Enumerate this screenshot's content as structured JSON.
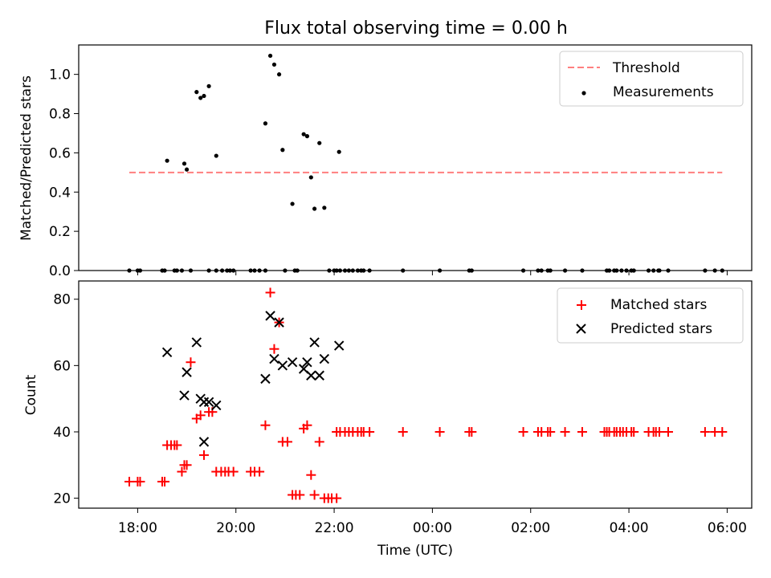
{
  "figure": {
    "title": "Flux total observing time = 0.00 h",
    "xlabel": "Time (UTC)",
    "xtick_labels": [
      "18:00",
      "20:00",
      "22:00",
      "00:00",
      "02:00",
      "04:00",
      "06:00"
    ]
  },
  "chart_data": [
    {
      "type": "scatter",
      "panel": "top",
      "ylabel": "Matched/Predicted stars",
      "xlabel": "Time (UTC)",
      "x_unit": "hours since 00:00 UTC (values after midnight continue past 24)",
      "xlim": [
        16.8,
        30.5
      ],
      "ylim": [
        0,
        1.15
      ],
      "yticks": [
        0.0,
        0.2,
        0.4,
        0.6,
        0.8,
        1.0
      ],
      "ytick_labels": [
        "0.0",
        "0.2",
        "0.4",
        "0.6",
        "0.8",
        "1.0"
      ],
      "legend_position": "top-right",
      "series": [
        {
          "name": "Threshold",
          "style": "dashed-line",
          "color": "#ff7f7f",
          "x": [
            17.83,
            29.9
          ],
          "y": [
            0.5,
            0.5
          ]
        },
        {
          "name": "Measurements",
          "style": "dot",
          "color": "#000000",
          "x": [
            18.6,
            18.95,
            19.0,
            19.2,
            19.28,
            19.35,
            19.45,
            19.6,
            20.6,
            20.7,
            20.78,
            20.88,
            20.95,
            21.15,
            21.38,
            21.45,
            21.53,
            21.6,
            21.7,
            21.8,
            22.1,
            17.83,
            18.0,
            18.05,
            18.5,
            18.55,
            18.75,
            18.8,
            18.9,
            19.08,
            19.45,
            19.6,
            19.72,
            19.82,
            19.88,
            19.95,
            20.3,
            20.38,
            20.48,
            20.6,
            21.0,
            21.2,
            21.25,
            21.9,
            22.0,
            22.05,
            22.12,
            22.22,
            22.3,
            22.38,
            22.48,
            22.55,
            22.6,
            22.72,
            23.4,
            24.15,
            24.75,
            24.8,
            25.85,
            26.15,
            26.22,
            26.35,
            26.4,
            26.7,
            27.05,
            27.55,
            27.6,
            27.7,
            27.75,
            27.85,
            27.95,
            28.05,
            28.1,
            28.4,
            28.5,
            28.6,
            28.62,
            28.8,
            29.55,
            29.75,
            29.9
          ],
          "y": [
            0.56,
            0.545,
            0.515,
            0.91,
            0.88,
            0.89,
            0.94,
            0.585,
            0.75,
            1.095,
            1.05,
            1.0,
            0.615,
            0.34,
            0.695,
            0.685,
            0.475,
            0.315,
            0.65,
            0.32,
            0.605,
            0.0,
            0.0,
            0.0,
            0.0,
            0.0,
            0.0,
            0.0,
            0.0,
            0.0,
            0.0,
            0.0,
            0.0,
            0.0,
            0.0,
            0.0,
            0.0,
            0.0,
            0.0,
            0.0,
            0.0,
            0.0,
            0.0,
            0.0,
            0.0,
            0.0,
            0.0,
            0.0,
            0.0,
            0.0,
            0.0,
            0.0,
            0.0,
            0.0,
            0.0,
            0.0,
            0.0,
            0.0,
            0.0,
            0.0,
            0.0,
            0.0,
            0.0,
            0.0,
            0.0,
            0.0,
            0.0,
            0.0,
            0.0,
            0.0,
            0.0,
            0.0,
            0.0,
            0.0,
            0.0,
            0.0,
            0.0,
            0.0,
            0.0,
            0.0,
            0.0
          ]
        }
      ]
    },
    {
      "type": "scatter",
      "panel": "bottom",
      "ylabel": "Count",
      "xlabel": "Time (UTC)",
      "x_unit": "hours since 00:00 UTC (values after midnight continue past 24)",
      "xlim": [
        16.8,
        30.5
      ],
      "ylim": [
        17,
        85.5
      ],
      "yticks": [
        20,
        40,
        60,
        80
      ],
      "ytick_labels": [
        "20",
        "40",
        "60",
        "80"
      ],
      "legend_position": "top-right",
      "series": [
        {
          "name": "Matched stars",
          "style": "plus",
          "color": "#ff0000",
          "x": [
            17.83,
            18.0,
            18.05,
            18.5,
            18.55,
            18.6,
            18.68,
            18.75,
            18.8,
            18.9,
            18.95,
            19.0,
            19.08,
            19.2,
            19.28,
            19.35,
            19.45,
            19.52,
            19.6,
            19.7,
            19.78,
            19.85,
            19.95,
            20.3,
            20.38,
            20.48,
            20.6,
            20.7,
            20.78,
            20.88,
            20.95,
            21.05,
            21.15,
            21.22,
            21.3,
            21.38,
            21.45,
            21.53,
            21.6,
            21.7,
            21.8,
            21.88,
            21.95,
            22.05,
            22.05,
            22.12,
            22.22,
            22.3,
            22.38,
            22.48,
            22.55,
            22.6,
            22.72,
            23.4,
            24.15,
            24.75,
            24.8,
            25.85,
            26.15,
            26.22,
            26.35,
            26.4,
            26.7,
            27.05,
            27.5,
            27.55,
            27.6,
            27.7,
            27.75,
            27.82,
            27.88,
            27.95,
            28.05,
            28.1,
            28.4,
            28.5,
            28.55,
            28.62,
            28.8,
            29.55,
            29.75,
            29.9
          ],
          "y": [
            25,
            25,
            25,
            25,
            25,
            36,
            36,
            36,
            36,
            28,
            30,
            30,
            61,
            44,
            45,
            33,
            46,
            46,
            28,
            28,
            28,
            28,
            28,
            28,
            28,
            28,
            42,
            82,
            65,
            73,
            37,
            37,
            21,
            21,
            21,
            41,
            42,
            27,
            21,
            37,
            20,
            20,
            20,
            20,
            40,
            40,
            40,
            40,
            40,
            40,
            40,
            40,
            40,
            40,
            40,
            40,
            40,
            40,
            40,
            40,
            40,
            40,
            40,
            40,
            40,
            40,
            40,
            40,
            40,
            40,
            40,
            40,
            40,
            40,
            40,
            40,
            40,
            40,
            40,
            40,
            40,
            40
          ]
        },
        {
          "name": "Predicted stars",
          "style": "x",
          "color": "#000000",
          "x": [
            18.6,
            18.95,
            19.0,
            19.2,
            19.28,
            19.35,
            19.45,
            19.6,
            20.6,
            20.7,
            20.78,
            20.88,
            20.95,
            21.15,
            21.38,
            21.45,
            21.53,
            21.6,
            21.7,
            21.8,
            22.1,
            19.35
          ],
          "y": [
            64,
            51,
            58,
            67,
            50,
            49,
            49,
            48,
            56,
            75,
            62,
            73,
            60,
            61,
            59,
            61,
            57,
            67,
            57,
            62,
            66,
            37
          ]
        }
      ]
    }
  ]
}
